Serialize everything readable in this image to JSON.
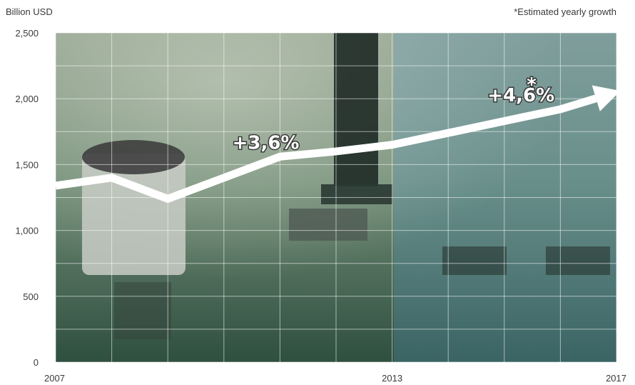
{
  "chart_data": {
    "type": "line",
    "ylabel": "Billion USD",
    "note": "*Estimated yearly growth",
    "yticks": [
      "2,500",
      "2,000",
      "1,500",
      "1,000",
      "500",
      "0"
    ],
    "ytick_values": [
      2500,
      2000,
      1500,
      1000,
      500,
      0
    ],
    "xticks": [
      "2007",
      "2013",
      "2017"
    ],
    "xtick_values": [
      2007,
      2013,
      2017
    ],
    "ylim": [
      0,
      2500
    ],
    "xlim": [
      2007,
      2017
    ],
    "grid": true,
    "series": [
      {
        "x": [
          2007,
          2008,
          2009,
          2010,
          2011,
          2012,
          2013,
          2014,
          2015,
          2016,
          2017
        ],
        "values": [
          1340,
          1400,
          1240,
          1400,
          1560,
          1600,
          1650,
          1740,
          1830,
          1920,
          2050
        ]
      }
    ],
    "annotations": [
      {
        "text": "+3,6%",
        "x": 2010.15,
        "y": 1620
      },
      {
        "text": "+4,6%",
        "x": 2014.7,
        "y": 1980
      },
      {
        "text": "*",
        "x": 2015.4,
        "y": 2060
      }
    ]
  },
  "colors": {
    "board_top": "#6f8b74",
    "board_bottom": "#2f4f3f",
    "estimate_overlay": "#5b9bc6",
    "arrow": "#ffffff",
    "grid": "#ffffff"
  }
}
